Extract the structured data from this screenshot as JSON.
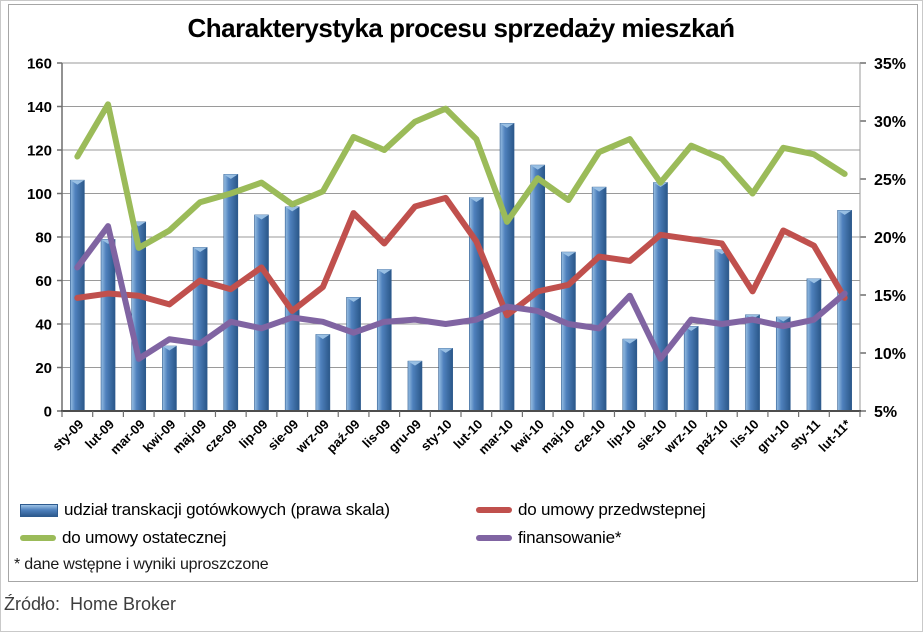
{
  "title": "Charakterystyka procesu sprzedaży mieszkań",
  "footnote": "* dane wstępne i wyniki uproszczone",
  "source": "Źródło:  Home Broker",
  "axes": {
    "left_ticks": [
      "160",
      "140",
      "120",
      "100",
      "80",
      "60",
      "40",
      "20",
      "0"
    ],
    "right_ticks": [
      "35%",
      "30%",
      "25%",
      "20%",
      "15%",
      "10%",
      "5%"
    ]
  },
  "colors": {
    "bar_blue": "#4f81bd",
    "bar_blue_light": "#9dc3e6",
    "bar_blue_dark": "#2e5b8f",
    "red": "#c0504d",
    "green": "#9bbb59",
    "purple": "#8064a2",
    "grid": "#9a9a9a",
    "axis": "#6e6e6e",
    "frame": "#a6a6a6"
  },
  "chart_data": {
    "type": "bar",
    "title": "Charakterystyka procesu sprzedaży mieszkań",
    "grid": true,
    "legend_position": "bottom",
    "left_axis": {
      "min": 0,
      "max": 160,
      "step": 20
    },
    "right_axis": {
      "min": 5,
      "max": 35,
      "step": 5,
      "unit": "%"
    },
    "categories": [
      "sty-09",
      "lut-09",
      "mar-09",
      "kwi-09",
      "maj-09",
      "cze-09",
      "lip-09",
      "sie-09",
      "wrz-09",
      "paź-09",
      "lis-09",
      "gru-09",
      "sty-10",
      "lut-10",
      "mar-10",
      "kwi-10",
      "maj-10",
      "cze-10",
      "lip-10",
      "sie-10",
      "wrz-10",
      "paź-10",
      "lis-10",
      "gru-10",
      "sty-11",
      "lut-11*"
    ],
    "series": [
      {
        "name": "udział transkacji gotówkowych (prawa skala)",
        "type": "bar",
        "axis": "right",
        "unit": "%",
        "color": "#4f81bd",
        "values": [
          24.9,
          19.8,
          21.3,
          10.6,
          19.1,
          25.4,
          21.9,
          22.6,
          11.6,
          14.8,
          17.2,
          9.3,
          10.4,
          23.4,
          29.8,
          26.2,
          18.7,
          24.3,
          11.2,
          24.7,
          12.3,
          18.9,
          13.3,
          13.1,
          16.4,
          22.3
        ]
      },
      {
        "name": "do umowy przedwstepnej",
        "type": "line",
        "axis": "left",
        "color": "#c0504d",
        "values": [
          52,
          54,
          53,
          49,
          60,
          56,
          66,
          46,
          57,
          91,
          77,
          94,
          98,
          78,
          44,
          55,
          58,
          71,
          69,
          81,
          79,
          77,
          55,
          83,
          76,
          52
        ]
      },
      {
        "name": "do umowy ostatecznej",
        "type": "line",
        "axis": "left",
        "color": "#9bbb59",
        "values": [
          117,
          141,
          75,
          83,
          96,
          100,
          105,
          95,
          101,
          126,
          120,
          133,
          139,
          125,
          87,
          107,
          97,
          119,
          125,
          105,
          122,
          116,
          100,
          121,
          118,
          109
        ]
      },
      {
        "name": "finansowanie*",
        "type": "line",
        "axis": "left",
        "color": "#8064a2",
        "values": [
          66,
          85,
          24,
          33,
          31,
          41,
          38,
          43,
          41,
          36,
          41,
          42,
          40,
          42,
          48,
          46,
          40,
          38,
          53,
          24,
          42,
          40,
          42,
          39,
          42,
          54
        ]
      }
    ]
  }
}
